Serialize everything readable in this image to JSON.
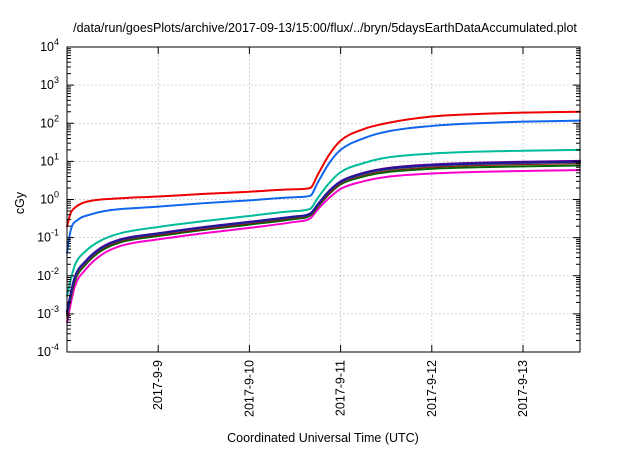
{
  "chart_data": {
    "type": "line",
    "title": "/data/run/goesPlots/archive/2017-09-13/15:00/flux/../bryn/5daysEarthDataAccumulated.plot",
    "xlabel": "Coordinated Universal Time (UTC)",
    "ylabel": "cGy",
    "yscale": "log",
    "ylim": [
      0.0001,
      10000
    ],
    "xlim": [
      "2017-09-08 00:00",
      "2017-09-13 15:00"
    ],
    "grid": true,
    "xticks": [
      {
        "x": "2017-09-09 00:00",
        "label": "2017-9-9"
      },
      {
        "x": "2017-09-10 00:00",
        "label": "2017-9-10"
      },
      {
        "x": "2017-09-11 00:00",
        "label": "2017-9-11"
      },
      {
        "x": "2017-09-12 00:00",
        "label": "2017-9-12"
      },
      {
        "x": "2017-09-13 00:00",
        "label": "2017-9-13"
      }
    ],
    "yticks": [
      {
        "y": 0.0001,
        "base": "10",
        "exp": "-4"
      },
      {
        "y": 0.001,
        "base": "10",
        "exp": "-3"
      },
      {
        "y": 0.01,
        "base": "10",
        "exp": "-2"
      },
      {
        "y": 0.1,
        "base": "10",
        "exp": "-1"
      },
      {
        "y": 1,
        "base": "10",
        "exp": "0"
      },
      {
        "y": 10,
        "base": "10",
        "exp": "1"
      },
      {
        "y": 100,
        "base": "10",
        "exp": "2"
      },
      {
        "y": 1000,
        "base": "10",
        "exp": "3"
      },
      {
        "y": 10000,
        "base": "10",
        "exp": "4"
      }
    ],
    "series": [
      {
        "color": "#ff00cc",
        "x": [
          "2017-09-08 00:00",
          "2017-09-08 02:00",
          "2017-09-08 05:00",
          "2017-09-08 09:00",
          "2017-09-08 14:00",
          "2017-09-09 00:00",
          "2017-09-09 12:00",
          "2017-09-10 00:00",
          "2017-09-10 12:00",
          "2017-09-10 16:00",
          "2017-09-10 18:00",
          "2017-09-10 21:00",
          "2017-09-11 00:00",
          "2017-09-11 06:00",
          "2017-09-11 12:00",
          "2017-09-12 00:00",
          "2017-09-12 12:00",
          "2017-09-13 00:00",
          "2017-09-13 15:00"
        ],
        "y": [
          0.0006,
          0.005,
          0.015,
          0.035,
          0.06,
          0.09,
          0.13,
          0.18,
          0.26,
          0.32,
          0.55,
          1.1,
          1.9,
          3.0,
          3.9,
          4.8,
          5.3,
          5.6,
          5.9
        ]
      },
      {
        "color": "#006600",
        "x": [
          "2017-09-08 00:00",
          "2017-09-08 02:00",
          "2017-09-08 05:00",
          "2017-09-08 09:00",
          "2017-09-08 14:00",
          "2017-09-09 00:00",
          "2017-09-09 12:00",
          "2017-09-10 00:00",
          "2017-09-10 12:00",
          "2017-09-10 16:00",
          "2017-09-10 18:00",
          "2017-09-10 21:00",
          "2017-09-11 00:00",
          "2017-09-11 06:00",
          "2017-09-11 12:00",
          "2017-09-12 00:00",
          "2017-09-12 12:00",
          "2017-09-13 00:00",
          "2017-09-13 15:00"
        ],
        "y": [
          0.0009,
          0.007,
          0.02,
          0.045,
          0.075,
          0.11,
          0.16,
          0.22,
          0.31,
          0.38,
          0.65,
          1.4,
          2.5,
          4.0,
          5.2,
          6.4,
          7.0,
          7.4,
          7.8
        ]
      },
      {
        "color": "#990000",
        "x": [
          "2017-09-08 00:00",
          "2017-09-08 02:00",
          "2017-09-08 05:00",
          "2017-09-08 09:00",
          "2017-09-08 14:00",
          "2017-09-09 00:00",
          "2017-09-09 12:00",
          "2017-09-10 00:00",
          "2017-09-10 12:00",
          "2017-09-10 16:00",
          "2017-09-10 18:00",
          "2017-09-10 21:00",
          "2017-09-11 00:00",
          "2017-09-11 06:00",
          "2017-09-11 12:00",
          "2017-09-12 00:00",
          "2017-09-12 12:00",
          "2017-09-13 00:00",
          "2017-09-13 15:00"
        ],
        "y": [
          0.001,
          0.008,
          0.022,
          0.05,
          0.082,
          0.12,
          0.17,
          0.24,
          0.34,
          0.41,
          0.7,
          1.5,
          2.7,
          4.4,
          5.8,
          7.2,
          8.0,
          8.5,
          9.0
        ]
      },
      {
        "color": "#666666",
        "x": [
          "2017-09-08 00:00",
          "2017-09-08 02:00",
          "2017-09-08 05:00",
          "2017-09-08 09:00",
          "2017-09-08 14:00",
          "2017-09-09 00:00",
          "2017-09-09 12:00",
          "2017-09-10 00:00",
          "2017-09-10 12:00",
          "2017-09-10 16:00",
          "2017-09-10 18:00",
          "2017-09-10 21:00",
          "2017-09-11 00:00",
          "2017-09-11 06:00",
          "2017-09-11 12:00",
          "2017-09-12 00:00",
          "2017-09-12 12:00",
          "2017-09-13 00:00",
          "2017-09-13 15:00"
        ],
        "y": [
          0.0011,
          0.0085,
          0.023,
          0.052,
          0.085,
          0.125,
          0.18,
          0.25,
          0.35,
          0.42,
          0.72,
          1.6,
          2.8,
          4.6,
          6.0,
          7.6,
          8.4,
          8.9,
          9.4
        ]
      },
      {
        "color": "#660099",
        "x": [
          "2017-09-08 00:00",
          "2017-09-08 02:00",
          "2017-09-08 05:00",
          "2017-09-08 09:00",
          "2017-09-08 14:00",
          "2017-09-09 00:00",
          "2017-09-09 12:00",
          "2017-09-10 00:00",
          "2017-09-10 12:00",
          "2017-09-10 16:00",
          "2017-09-10 18:00",
          "2017-09-10 21:00",
          "2017-09-11 00:00",
          "2017-09-11 06:00",
          "2017-09-11 12:00",
          "2017-09-12 00:00",
          "2017-09-12 12:00",
          "2017-09-13 00:00",
          "2017-09-13 15:00"
        ],
        "y": [
          0.0012,
          0.009,
          0.025,
          0.055,
          0.09,
          0.13,
          0.19,
          0.26,
          0.36,
          0.43,
          0.75,
          1.7,
          3.0,
          5.0,
          6.6,
          8.3,
          9.2,
          9.8,
          10.3
        ]
      },
      {
        "color": "#1a1a99",
        "x": [
          "2017-09-08 00:00",
          "2017-09-08 02:00",
          "2017-09-08 05:00",
          "2017-09-08 09:00",
          "2017-09-08 14:00",
          "2017-09-09 00:00",
          "2017-09-09 12:00",
          "2017-09-10 00:00",
          "2017-09-10 12:00",
          "2017-09-10 16:00",
          "2017-09-10 18:00",
          "2017-09-10 21:00",
          "2017-09-11 00:00",
          "2017-09-11 06:00",
          "2017-09-11 12:00",
          "2017-09-12 00:00",
          "2017-09-12 12:00",
          "2017-09-13 00:00",
          "2017-09-13 15:00"
        ],
        "y": [
          0.0011,
          0.0088,
          0.024,
          0.053,
          0.087,
          0.127,
          0.185,
          0.255,
          0.355,
          0.425,
          0.74,
          1.65,
          2.9,
          4.8,
          6.3,
          7.9,
          8.8,
          9.3,
          9.8
        ]
      },
      {
        "color": "#00bb99",
        "x": [
          "2017-09-08 00:00",
          "2017-09-08 02:00",
          "2017-09-08 05:00",
          "2017-09-08 09:00",
          "2017-09-08 14:00",
          "2017-09-09 00:00",
          "2017-09-09 12:00",
          "2017-09-10 00:00",
          "2017-09-10 12:00",
          "2017-09-10 16:00",
          "2017-09-10 18:00",
          "2017-09-10 21:00",
          "2017-09-11 00:00",
          "2017-09-11 06:00",
          "2017-09-11 12:00",
          "2017-09-12 00:00",
          "2017-09-12 12:00",
          "2017-09-13 00:00",
          "2017-09-13 15:00"
        ],
        "y": [
          0.003,
          0.018,
          0.045,
          0.085,
          0.13,
          0.19,
          0.27,
          0.37,
          0.5,
          0.57,
          1.1,
          2.7,
          5.2,
          9.0,
          12.5,
          16.0,
          18.0,
          19.0,
          20.0
        ]
      },
      {
        "color": "#1166ee",
        "x": [
          "2017-09-08 00:00",
          "2017-09-08 01:00",
          "2017-09-08 03:00",
          "2017-09-08 06:00",
          "2017-09-08 10:00",
          "2017-09-09 00:00",
          "2017-09-09 12:00",
          "2017-09-10 00:00",
          "2017-09-10 12:00",
          "2017-09-10 16:00",
          "2017-09-10 18:00",
          "2017-09-10 21:00",
          "2017-09-11 00:00",
          "2017-09-11 06:00",
          "2017-09-11 12:00",
          "2017-09-12 00:00",
          "2017-09-12 12:00",
          "2017-09-13 00:00",
          "2017-09-13 15:00"
        ],
        "y": [
          0.04,
          0.16,
          0.3,
          0.4,
          0.5,
          0.65,
          0.8,
          0.95,
          1.15,
          1.25,
          2.8,
          9.0,
          20.0,
          40.0,
          60.0,
          85.0,
          100.0,
          110.0,
          117.0
        ]
      },
      {
        "color": "#ee0000",
        "x": [
          "2017-09-08 00:00",
          "2017-09-08 01:00",
          "2017-09-08 02:00",
          "2017-09-08 04:00",
          "2017-09-08 07:00",
          "2017-09-08 12:00",
          "2017-09-09 00:00",
          "2017-09-09 12:00",
          "2017-09-10 00:00",
          "2017-09-10 12:00",
          "2017-09-10 16:00",
          "2017-09-10 18:00",
          "2017-09-10 21:00",
          "2017-09-11 00:00",
          "2017-09-11 06:00",
          "2017-09-11 12:00",
          "2017-09-12 00:00",
          "2017-09-12 12:00",
          "2017-09-13 00:00",
          "2017-09-13 15:00"
        ],
        "y": [
          0.2,
          0.45,
          0.6,
          0.8,
          0.95,
          1.05,
          1.2,
          1.4,
          1.6,
          1.85,
          2.0,
          4.5,
          15.0,
          35.0,
          70.0,
          100.0,
          150.0,
          175.0,
          190.0,
          200.0
        ]
      }
    ]
  }
}
